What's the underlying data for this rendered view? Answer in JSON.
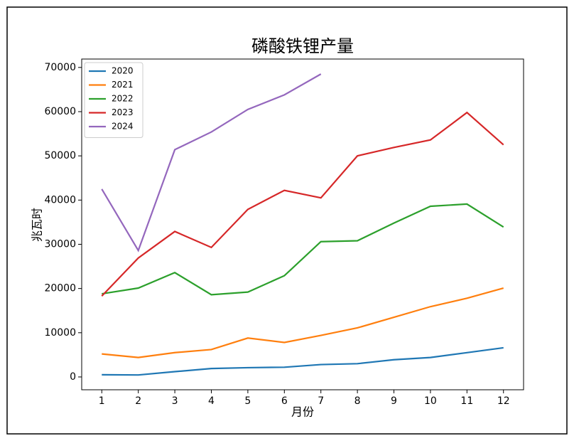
{
  "chart_data": {
    "type": "line",
    "title": "磷酸铁锂产量",
    "x_label": "月份",
    "y_label": "兆瓦时",
    "x": [
      1,
      2,
      3,
      4,
      5,
      6,
      7,
      8,
      9,
      10,
      11,
      12
    ],
    "xlim": [
      0.45,
      12.55
    ],
    "xticks": [
      1,
      2,
      3,
      4,
      5,
      6,
      7,
      8,
      9,
      10,
      11,
      12
    ],
    "ylim": [
      -2900,
      71900
    ],
    "yticks": [
      0,
      10000,
      20000,
      30000,
      40000,
      50000,
      60000,
      70000
    ],
    "legend": "upper left",
    "grid": false,
    "series": [
      {
        "name": "2020",
        "color": "#1f77b4",
        "values": [
          500,
          450,
          1200,
          1900,
          2100,
          2200,
          2800,
          3000,
          3900,
          4400,
          5500,
          6600
        ]
      },
      {
        "name": "2021",
        "color": "#ff7f0e",
        "values": [
          5200,
          4400,
          5500,
          6200,
          8800,
          7800,
          9400,
          11100,
          13500,
          15900,
          17800,
          20100
        ]
      },
      {
        "name": "2022",
        "color": "#2ca02c",
        "values": [
          18800,
          20100,
          23600,
          18600,
          19200,
          22900,
          30600,
          30800,
          34800,
          38600,
          39100,
          33900
        ]
      },
      {
        "name": "2023",
        "color": "#d62728",
        "values": [
          18300,
          26900,
          32900,
          29300,
          37900,
          42200,
          40500,
          50000,
          51900,
          53600,
          59800,
          52500
        ]
      },
      {
        "name": "2024",
        "color": "#9467bd",
        "values": [
          42500,
          28600,
          51400,
          55400,
          60500,
          63800,
          68500,
          null,
          null,
          null,
          null,
          null
        ]
      }
    ]
  }
}
